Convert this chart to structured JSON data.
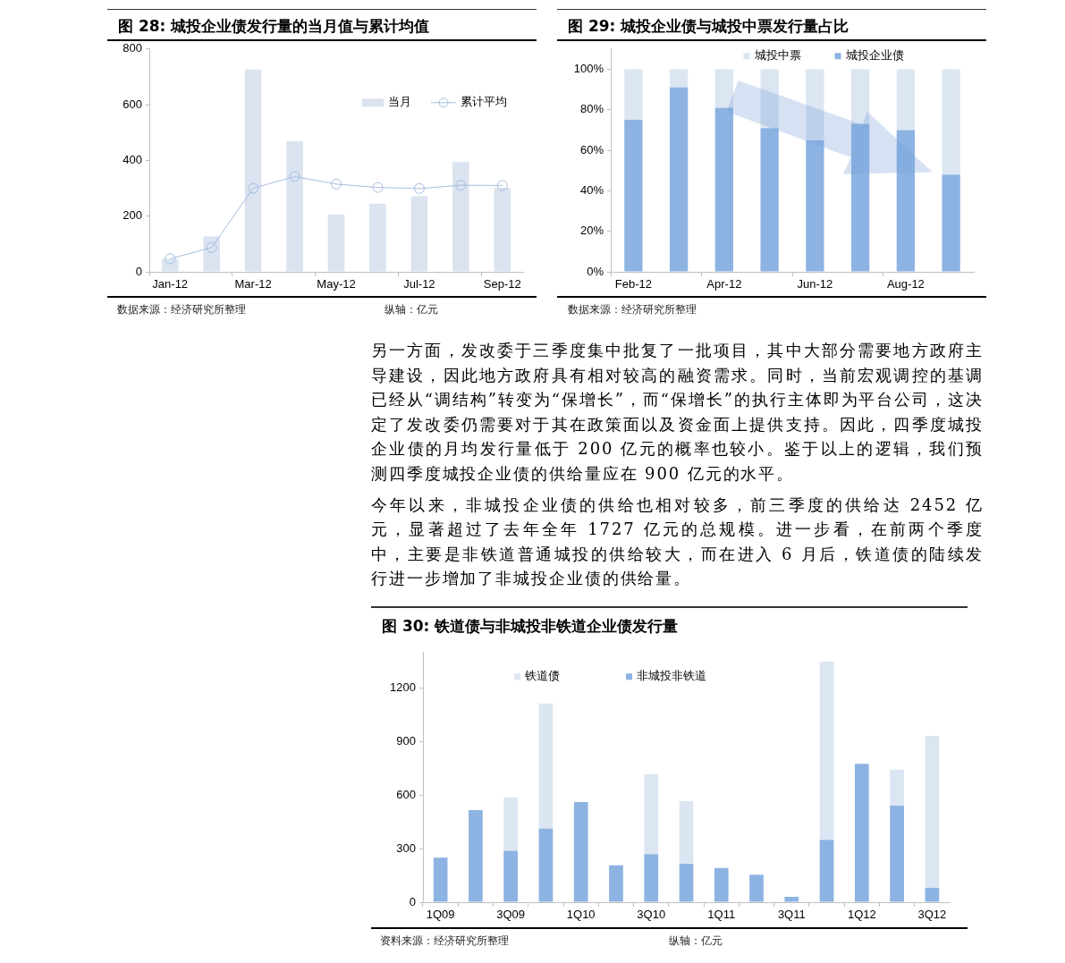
{
  "chart_data": [
    {
      "type": "bar",
      "title": "图 28: 城投企业债发行量的当月值与累计均值",
      "categories": [
        "Jan-12",
        null,
        "Mar-12",
        null,
        "May-12",
        null,
        "Jul-12",
        null,
        "Sep-12"
      ],
      "series": [
        {
          "name": "当月",
          "type": "bar",
          "color": "#dbe3f0",
          "values": [
            47,
            127,
            726,
            469,
            206,
            245,
            271,
            394,
            302
          ]
        },
        {
          "name": "累计平均",
          "type": "line",
          "color": "#a6bde0",
          "values": [
            47,
            87,
            300,
            342,
            315,
            303,
            299,
            311,
            310
          ]
        }
      ],
      "ylim": [
        0,
        800
      ],
      "yticks": [
        0,
        200,
        400,
        600,
        800
      ],
      "legend": "top right",
      "marker": "circle",
      "annotations": [
        "数据来源：经济研究所整理",
        "纵轴：亿元"
      ]
    },
    {
      "type": "bar",
      "title": "图 29: 城投企业债与城投中票发行量占比",
      "categories": [
        "Feb-12",
        null,
        "Apr-12",
        null,
        "Jun-12",
        null,
        "Aug-12",
        null
      ],
      "stacked": true,
      "series": [
        {
          "name": "城投企业债",
          "color": "#8db3e2",
          "values": [
            75,
            91,
            81,
            71,
            65,
            73,
            70,
            48
          ]
        },
        {
          "name": "城投中票",
          "color": "#dce6f2",
          "values": [
            25,
            9,
            19,
            29,
            35,
            27,
            30,
            52
          ]
        }
      ],
      "ylim": [
        0,
        110
      ],
      "yticks": [
        {
          "value": 0,
          "label": "0%"
        },
        {
          "value": 20,
          "label": "20%"
        },
        {
          "value": 40,
          "label": "40%"
        },
        {
          "value": 60,
          "label": "60%"
        },
        {
          "value": 80,
          "label": "80%"
        },
        {
          "value": 100,
          "label": "100%"
        }
      ],
      "legend": "top",
      "annotations": [
        "数据来源：经济研究所整理"
      ]
    },
    {
      "type": "other",
      "annotations": [
        "另一方面，发改委于三季度集中批复了一批项目，其中大部分需要地方政府主导建设，因此地方政府具有相对较高的融资需求。同时，当前宏观调控的基调已经从“调结构”转变为“保增长”，而“保增长”的执行主体即为平台公司，这决定了发改委仍需要对于其在政策面以及资金面上提供支持。因此，四季度城投企业债的月均发行量低于 200 亿元的概率也较小。鉴于以上的逻辑，我们预测四季度城投企业债的供给量应在 900 亿元的水平。",
        "今年以来，非城投企业债的供给也相对较多，前三季度的供给达 2452 亿元，显著超过了去年全年 1727 亿元的总规模。进一步看，在前两个季度中，主要是非铁道普通城投的供给较大，而在进入 6 月后，铁道债的陆续发行进一步增加了非城投企业债的供给量。"
      ]
    },
    {
      "type": "bar",
      "title": "图 30: 铁道债与非城投非铁道企业债发行量",
      "categories": [
        "1Q09",
        null,
        "3Q09",
        null,
        "1Q10",
        null,
        "3Q10",
        null,
        "1Q11",
        null,
        "3Q11",
        null,
        "1Q12",
        null,
        "3Q12"
      ],
      "stacked": true,
      "series": [
        {
          "name": "非城投非铁道",
          "color": "#8db3e2",
          "values": [
            250,
            517,
            288,
            413,
            562,
            207,
            269,
            215,
            192,
            154,
            30,
            350,
            776,
            542,
            81
          ]
        },
        {
          "name": "铁道债",
          "color": "#dce6f2",
          "values": [
            null,
            null,
            300,
            701,
            null,
            null,
            449,
            352,
            null,
            null,
            null,
            999,
            null,
            201,
            852
          ]
        }
      ],
      "ylim": [
        0,
        1400
      ],
      "yticks": [
        0,
        300,
        600,
        900,
        1200
      ],
      "legend": "top",
      "annotations": [
        "资料来源：经济研究所整理",
        "纵轴：亿元"
      ]
    }
  ]
}
